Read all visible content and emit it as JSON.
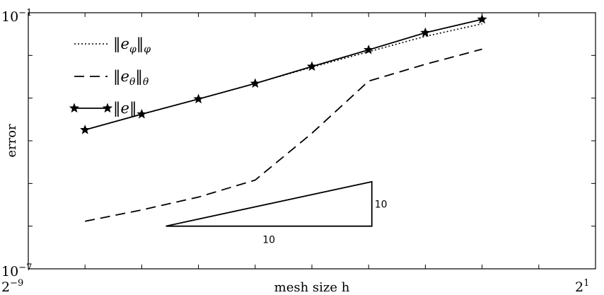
{
  "chart_data": {
    "type": "line",
    "xlabel": "mesh size h",
    "ylabel": "error",
    "x_scale": "log2",
    "y_scale": "log10",
    "xlim": [
      0.001953125,
      2
    ],
    "ylim": [
      1e-07,
      0.1
    ],
    "x_tick_labels": [
      {
        "base": "2",
        "exp": "−9"
      },
      {
        "base": "2",
        "exp": "1"
      }
    ],
    "y_tick_labels": [
      {
        "base": "10",
        "exp": "−7"
      },
      {
        "base": "10",
        "exp": "−1"
      }
    ],
    "series": [
      {
        "name": "‖e_φ‖_φ",
        "style": "dotted",
        "marker": "none",
        "x": [
          0.00390625,
          0.0078125,
          0.015625,
          0.03125,
          0.0625,
          0.125,
          0.25,
          0.5
        ],
        "y": [
          0.00018,
          0.00042,
          0.00095,
          0.0022,
          0.0053,
          0.0122,
          0.028,
          0.055
        ]
      },
      {
        "name": "‖e_θ‖_θ",
        "style": "dashed",
        "marker": "none",
        "x": [
          0.00390625,
          0.0078125,
          0.015625,
          0.03125,
          0.0625,
          0.125,
          0.25,
          0.5
        ],
        "y": [
          1.3e-06,
          2.4e-06,
          4.8e-06,
          1.2e-05,
          0.00015,
          0.0025,
          0.0062,
          0.014
        ]
      },
      {
        "name": "‖e‖",
        "style": "solid",
        "marker": "star",
        "x": [
          0.00390625,
          0.0078125,
          0.015625,
          0.03125,
          0.0625,
          0.125,
          0.25,
          0.5
        ],
        "y": [
          0.00018,
          0.00042,
          0.00095,
          0.0022,
          0.0055,
          0.0135,
          0.034,
          0.07
        ]
      }
    ],
    "slope_triangle": {
      "x": [
        0.0105,
        0.13
      ],
      "y": [
        1e-06,
        1.1e-05
      ],
      "horizontal_label": "10",
      "vertical_label": "10"
    },
    "legend_position": "top-left",
    "grid": false
  }
}
